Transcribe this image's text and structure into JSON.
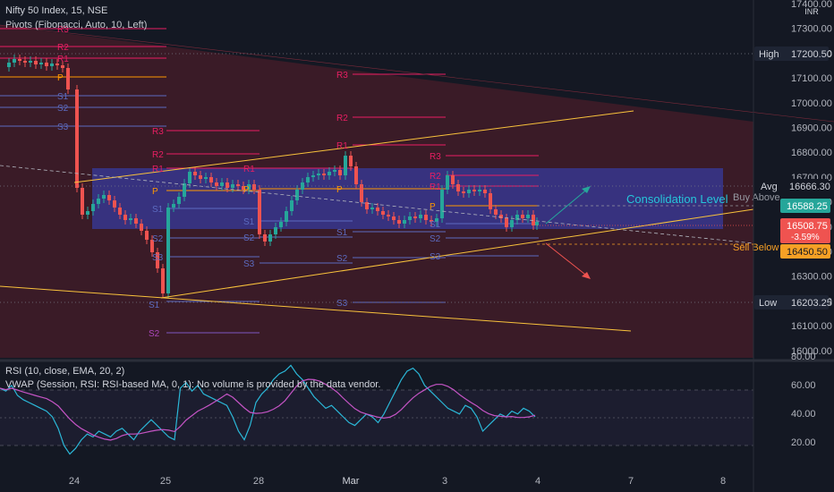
{
  "header": {
    "symbol_title": "Nifty 50 Index, 15, NSE",
    "pivots_title": "Pivots (Fibonacci, Auto, 10, Left)",
    "currency": "INR"
  },
  "price_axis": {
    "ticks": [
      "17400.00",
      "17300.00",
      "17200.00",
      "17100.00",
      "17000.00",
      "16900.00",
      "16800.00",
      "16700.00",
      "16600.00",
      "16500.00",
      "16400.00",
      "16300.00",
      "16200.00",
      "16100.00",
      "16000.00"
    ],
    "high_label": "High",
    "high_value": "17200.50",
    "low_label": "Low",
    "low_value": "16203.25",
    "avg_label": "Avg",
    "avg_value": "16666.30",
    "buy_price": "16588.25",
    "last_price": "16508.75",
    "change_pct": "-3.59%",
    "sell_price": "16450.50"
  },
  "annotations": {
    "consolidation": "Consolidation Level",
    "buy_above": "Buy Above",
    "sell_below": "Sell Below"
  },
  "pivot_labels": {
    "r3": "R3",
    "r2": "R2",
    "r1": "R1",
    "p": "P",
    "s1": "S1",
    "s2": "S2",
    "s3": "S3"
  },
  "rsi": {
    "title": "RSI (10, close, EMA, 20, 2)",
    "vwap_note": "VWAP (Session, RSI: RSI-based MA, 0, 1): No volume is provided by the data vendor.",
    "ticks": [
      "80.00",
      "60.00",
      "40.00",
      "20.00"
    ]
  },
  "time_axis": {
    "labels": [
      "24",
      "25",
      "28",
      "Mar",
      "3",
      "4",
      "7",
      "8"
    ]
  },
  "colors": {
    "bg": "#141823",
    "up": "#26a69a",
    "down": "#ef5350",
    "pivot_r": "#e91e63",
    "pivot_p": "#ff9800",
    "pivot_s": "#3f51b5",
    "trend": "#f9c23c",
    "channel": "#6b2232",
    "consolidation": "#3d4bd8",
    "rsi": "#2bb8d8",
    "rsi_ma": "#c554c5",
    "high_low_label": "#1e2433"
  }
}
